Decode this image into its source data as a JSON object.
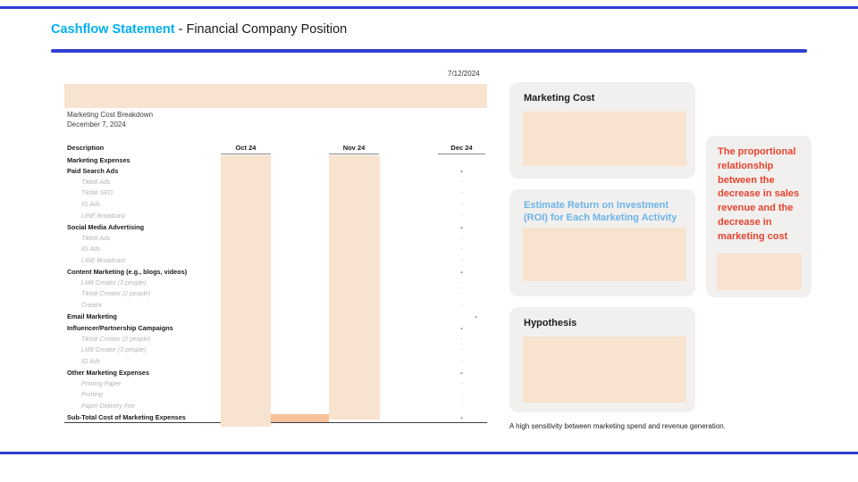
{
  "header": {
    "title_accent": "Cashflow Statement",
    "title_rest": " - Financial Company Position",
    "date": "7/12/2024"
  },
  "left": {
    "subtitle1": "Marketing Cost Breakdown",
    "subtitle2": "December 7, 2024"
  },
  "table": {
    "headers": {
      "desc": "Description",
      "oct": "Oct 24",
      "nov": "Nov 24",
      "dec": "Dec 24"
    },
    "rows": [
      {
        "label": "Marketing Expenses",
        "style": "bold",
        "dec": ""
      },
      {
        "label": "Paid Search Ads",
        "style": "bold",
        "dec": "-"
      },
      {
        "label": "Tiktok Ads",
        "style": "item",
        "dec": "-"
      },
      {
        "label": "Tiktok SEO",
        "style": "item",
        "dec": "-"
      },
      {
        "label": "IG Ads",
        "style": "item",
        "dec": "-"
      },
      {
        "label": "LINE Broadcast",
        "style": "item",
        "dec": "-"
      },
      {
        "label": "Social Media Advertising",
        "style": "bold",
        "dec": "-"
      },
      {
        "label": "Tiktok Ads",
        "style": "item",
        "dec": "-"
      },
      {
        "label": "IG Ads",
        "style": "item",
        "dec": "-"
      },
      {
        "label": "LINE Broadcast",
        "style": "item",
        "dec": "-"
      },
      {
        "label": "Content Marketing (e.g., blogs, videos)",
        "style": "bold",
        "dec": "-"
      },
      {
        "label": "LM8 Creator (3 people)",
        "style": "item",
        "dec": "-"
      },
      {
        "label": "Tiktok Creator (2 people)",
        "style": "item",
        "dec": "-"
      },
      {
        "label": "Creator",
        "style": "item",
        "dec": "-"
      },
      {
        "label": "Email Marketing",
        "style": "bold",
        "dec": "-",
        "shift": true
      },
      {
        "label": "Influencer/Partnership Campaigns",
        "style": "bold",
        "dec": "-"
      },
      {
        "label": "Tiktok Creator (2 people)",
        "style": "item",
        "dec": "-"
      },
      {
        "label": "LM8 Creator (3 people)",
        "style": "item",
        "dec": "-"
      },
      {
        "label": "IG Ads",
        "style": "item",
        "dec": "-"
      },
      {
        "label": "Other Marketing Expenses",
        "style": "bold",
        "dec": "-"
      },
      {
        "label": "Printing Paper",
        "style": "item",
        "dec": "-"
      },
      {
        "label": "Printing",
        "style": "item",
        "dec": "-"
      },
      {
        "label": "Paper Delivery Fee",
        "style": "item",
        "dec": "-"
      },
      {
        "label": "Sub-Total Cost of Marketing Expenses",
        "style": "subtotal",
        "dec": "-"
      }
    ]
  },
  "panels": {
    "marketing_cost": {
      "title": "Marketing Cost"
    },
    "roi": {
      "title": "Estimate Return on Investment (ROI) for Each Marketing Activity"
    },
    "hypothesis": {
      "title": "Hypothesis"
    }
  },
  "callout": {
    "text": "The proportional relationship between the decrease in sales revenue and the decrease in marketing cost"
  },
  "footnote": "A high sensitivity between marketing spend and revenue generation.",
  "colors": {
    "accent_blue": "#2f3fd3",
    "title_cyan": "#00b0f0",
    "peach": "#f8e2d0",
    "orange_strip": "#f5c09a",
    "panel_gray": "#f1f0ee",
    "red_text": "#e8432e",
    "roi_blue": "#6db3e8"
  }
}
